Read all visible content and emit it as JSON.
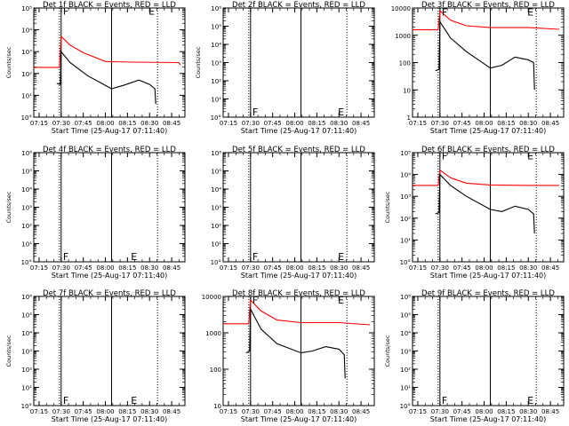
{
  "chart_data": {
    "type": "line",
    "x_tick_labels": [
      "07:15",
      "07:30",
      "07:45",
      "08:00",
      "08:15",
      "08:30",
      "08:45"
    ],
    "x_tick_hours": [
      7.25,
      7.5,
      7.75,
      8.0,
      8.25,
      8.5,
      8.75
    ],
    "xlim": [
      7.19,
      8.9
    ],
    "xlabel": "Start Time (25-Aug-17 07:11:40)",
    "colors": {
      "events": "#000000",
      "lld": "#ff0000"
    },
    "vlines": {
      "solid": [
        7.5,
        8.07
      ],
      "dotted": [
        7.48,
        8.59
      ]
    },
    "panels": [
      {
        "title": "Det 1f BLACK = Events, RED = LLD",
        "ylabel": "Counts/sec",
        "ylim_log": [
          0,
          5
        ],
        "ytick_labels": [
          "10°",
          "10¹",
          "10²",
          "10³",
          "10⁴",
          "10⁵"
        ],
        "marker_F": [
          7.5,
          4.85
        ],
        "marker_E": [
          8.61,
          4.85
        ],
        "red": [
          [
            7.19,
            2.28
          ],
          [
            7.48,
            2.28
          ],
          [
            7.5,
            3.7
          ],
          [
            7.6,
            3.3
          ],
          [
            7.75,
            2.95
          ],
          [
            8.0,
            2.55
          ],
          [
            8.3,
            2.52
          ],
          [
            8.83,
            2.5
          ],
          [
            8.85,
            2.4
          ]
        ],
        "black": [
          [
            7.45,
            1.55
          ],
          [
            7.49,
            1.5
          ],
          [
            7.5,
            3.0
          ],
          [
            7.6,
            2.5
          ],
          [
            7.8,
            1.9
          ],
          [
            8.07,
            1.3
          ],
          [
            8.2,
            1.45
          ],
          [
            8.38,
            1.7
          ],
          [
            8.5,
            1.5
          ],
          [
            8.56,
            1.3
          ],
          [
            8.57,
            0.6
          ]
        ]
      },
      {
        "title": "Det 2f BLACK = Events, RED = LLD",
        "ylabel": "Counts/sec",
        "ylim_log": [
          0,
          6
        ],
        "ytick_labels": [
          "10°",
          "10¹",
          "10²",
          "10³",
          "10⁴",
          "10⁵",
          "10⁶"
        ],
        "marker_F": [
          7.5,
          0.3
        ],
        "marker_E": [
          8.61,
          0.3
        ],
        "red": [],
        "black": []
      },
      {
        "title": "Det 3f BLACK = Events, RED = LLD",
        "ylabel": "",
        "ylim_log": [
          0,
          4
        ],
        "ytick_labels": [
          "1",
          "10",
          "100",
          "1000",
          "10000"
        ],
        "marker_F": [
          7.5,
          3.85
        ],
        "marker_E": [
          8.61,
          3.85
        ],
        "red": [
          [
            7.19,
            3.2
          ],
          [
            7.48,
            3.2
          ],
          [
            7.5,
            3.9
          ],
          [
            7.62,
            3.55
          ],
          [
            7.8,
            3.35
          ],
          [
            8.07,
            3.28
          ],
          [
            8.5,
            3.28
          ],
          [
            8.85,
            3.22
          ]
        ],
        "black": [
          [
            7.45,
            1.7
          ],
          [
            7.49,
            1.75
          ],
          [
            7.5,
            3.5
          ],
          [
            7.62,
            2.9
          ],
          [
            7.8,
            2.4
          ],
          [
            8.07,
            1.8
          ],
          [
            8.2,
            1.9
          ],
          [
            8.35,
            2.2
          ],
          [
            8.5,
            2.1
          ],
          [
            8.56,
            2.0
          ],
          [
            8.57,
            1.0
          ]
        ]
      },
      {
        "title": "Det 4f BLACK = Events, RED = LLD",
        "ylabel": "Counts/sec",
        "ylim_log": [
          0,
          6
        ],
        "ytick_labels": [
          "10°",
          "10¹",
          "10²",
          "10³",
          "10⁴",
          "10⁵",
          "10⁶"
        ],
        "marker_F": [
          7.5,
          0.3
        ],
        "marker_E": [
          8.41,
          0.3
        ],
        "red": [],
        "black": []
      },
      {
        "title": "Det 5f BLACK = Events, RED = LLD",
        "ylabel": "",
        "ylim_log": [
          0,
          6
        ],
        "ytick_labels": [
          "10°",
          "10¹",
          "10²",
          "10³",
          "10⁴",
          "10⁵",
          "10⁶"
        ],
        "marker_F": [
          7.5,
          0.3
        ],
        "marker_E": [
          8.61,
          0.3
        ],
        "red": [],
        "black": []
      },
      {
        "title": "Det 6f BLACK = Events, RED = LLD",
        "ylabel": "Counts/sec",
        "ylim_log": [
          0,
          5
        ],
        "ytick_labels": [
          "10°",
          "10¹",
          "10²",
          "10³",
          "10⁴",
          "10⁵"
        ],
        "marker_F": [
          7.5,
          4.85
        ],
        "marker_E": [
          8.61,
          4.85
        ],
        "red": [
          [
            7.19,
            3.5
          ],
          [
            7.48,
            3.5
          ],
          [
            7.5,
            4.2
          ],
          [
            7.62,
            3.85
          ],
          [
            7.8,
            3.6
          ],
          [
            8.07,
            3.52
          ],
          [
            8.5,
            3.5
          ],
          [
            8.85,
            3.5
          ]
        ],
        "black": [
          [
            7.45,
            2.2
          ],
          [
            7.49,
            2.25
          ],
          [
            7.5,
            4.0
          ],
          [
            7.62,
            3.5
          ],
          [
            7.8,
            3.0
          ],
          [
            8.07,
            2.4
          ],
          [
            8.2,
            2.3
          ],
          [
            8.35,
            2.55
          ],
          [
            8.5,
            2.4
          ],
          [
            8.56,
            2.2
          ],
          [
            8.57,
            1.3
          ]
        ]
      },
      {
        "title": "Det 7f BLACK = Events, RED = LLD",
        "ylabel": "Counts/sec",
        "ylim_log": [
          0,
          6
        ],
        "ytick_labels": [
          "10°",
          "10¹",
          "10²",
          "10³",
          "10⁴",
          "10⁵",
          "10⁶"
        ],
        "marker_F": [
          7.5,
          0.3
        ],
        "marker_E": [
          8.41,
          0.3
        ],
        "red": [],
        "black": []
      },
      {
        "title": "Det 8f BLACK = Events, RED = LLD",
        "ylabel": "",
        "ylim_log": [
          1,
          4
        ],
        "ytick_labels": [
          "10",
          "100",
          "1000",
          "10000"
        ],
        "marker_F": [
          7.5,
          3.9
        ],
        "marker_E": [
          8.61,
          3.9
        ],
        "red": [
          [
            7.19,
            3.25
          ],
          [
            7.48,
            3.25
          ],
          [
            7.5,
            3.9
          ],
          [
            7.62,
            3.6
          ],
          [
            7.8,
            3.35
          ],
          [
            8.07,
            3.28
          ],
          [
            8.5,
            3.28
          ],
          [
            8.85,
            3.22
          ]
        ],
        "black": [
          [
            7.45,
            2.45
          ],
          [
            7.49,
            2.5
          ],
          [
            7.5,
            3.65
          ],
          [
            7.62,
            3.1
          ],
          [
            7.8,
            2.7
          ],
          [
            8.07,
            2.45
          ],
          [
            8.2,
            2.5
          ],
          [
            8.35,
            2.62
          ],
          [
            8.5,
            2.55
          ],
          [
            8.56,
            2.4
          ],
          [
            8.57,
            1.75
          ]
        ]
      },
      {
        "title": "Det 9f BLACK = Events, RED = LLD",
        "ylabel": "Counts/sec",
        "ylim_log": [
          0,
          6
        ],
        "ytick_labels": [
          "10°",
          "10¹",
          "10²",
          "10³",
          "10⁴",
          "10⁵",
          "10⁶"
        ],
        "marker_F": [
          7.5,
          0.3
        ],
        "marker_E": [
          8.61,
          0.3
        ],
        "red": [],
        "black": []
      }
    ],
    "marker_labels": {
      "F": "F",
      "E": "E"
    }
  }
}
